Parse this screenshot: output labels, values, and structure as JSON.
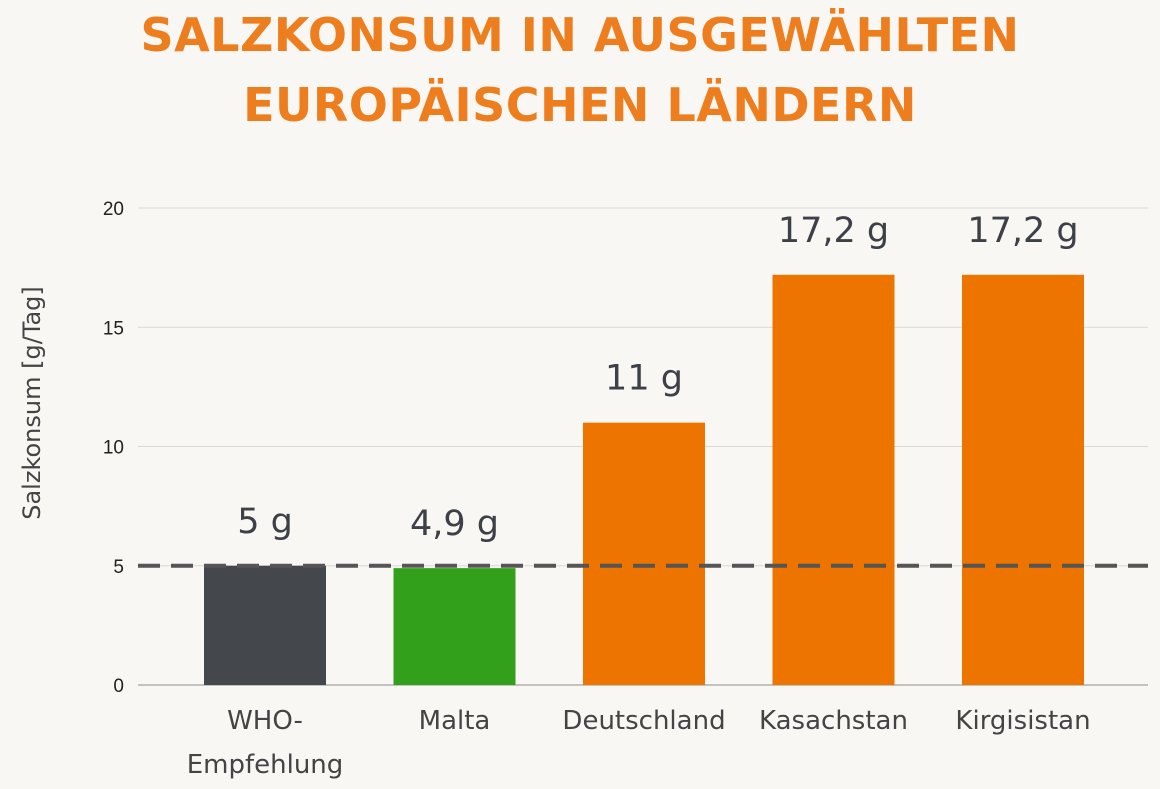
{
  "title_lines": [
    "SALZKONSUM IN AUSGEWÄHLTEN",
    "EUROPÄISCHEN LÄNDERN"
  ],
  "colors": {
    "title": "#ee7d1d",
    "who": "#44474b",
    "malta": "#33a01b",
    "country": "#ee7400",
    "grid": "#d8d8d8",
    "reference_line": "#555555"
  },
  "chart_data": {
    "type": "bar",
    "title": "SALZKONSUM IN AUSGEWÄHLTEN EUROPÄISCHEN LÄNDERN",
    "categories": [
      "WHO-Empfehlung",
      "Malta",
      "Deutschland",
      "Kasachstan",
      "Kirgisistan"
    ],
    "category_label_lines": [
      [
        "WHO-",
        "Empfehlung"
      ],
      [
        "Malta"
      ],
      [
        "Deutschland"
      ],
      [
        "Kasachstan"
      ],
      [
        "Kirgisistan"
      ]
    ],
    "values": [
      5,
      4.9,
      11,
      17.2,
      17.2
    ],
    "data_labels": [
      "5 g",
      "4,9 g",
      "11 g",
      "17,2 g",
      "17,2 g"
    ],
    "bar_colors": [
      "#44474b",
      "#33a01b",
      "#ee7400",
      "#ee7400",
      "#ee7400"
    ],
    "xlabel": "",
    "ylabel": "Salzkonsum [g/Tag]",
    "ylim": [
      0,
      20
    ],
    "yticks": [
      0,
      5,
      10,
      15,
      20
    ],
    "grid": true,
    "reference_line": {
      "value": 5,
      "style": "dashed"
    },
    "legend": "none"
  }
}
